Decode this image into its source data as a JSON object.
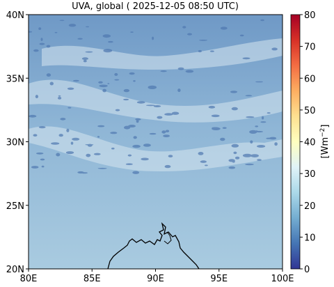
{
  "title": "UVA, global ( 2025-12-05 08:50 UTC)",
  "map": {
    "lon_range": [
      80,
      100
    ],
    "lat_range": [
      20,
      40
    ],
    "x_ticks": [
      "80E",
      "85E",
      "90E",
      "95E",
      "100E"
    ],
    "y_ticks": [
      "20N",
      "25N",
      "30N",
      "35N",
      "40N"
    ],
    "field_colors": {
      "south": "#a9cbe0",
      "middle": "#8fb6d6",
      "north": "#6f99c6",
      "cloud_bright": "#d6e6f0",
      "cloud_dark": "#4f78b0"
    },
    "coastline_color": "#000000"
  },
  "colorbar": {
    "ticks": [
      "0",
      "10",
      "20",
      "30",
      "40",
      "50",
      "60",
      "70",
      "80"
    ],
    "range": [
      0,
      80
    ],
    "label": "[Wm",
    "label_exp": "−2",
    "label_end": "]",
    "colors": [
      "#313695",
      "#4575b4",
      "#74add1",
      "#abd9e9",
      "#e0f3f8",
      "#ffffbf",
      "#fee090",
      "#fdae61",
      "#f46d43",
      "#d73027",
      "#a50026"
    ]
  }
}
